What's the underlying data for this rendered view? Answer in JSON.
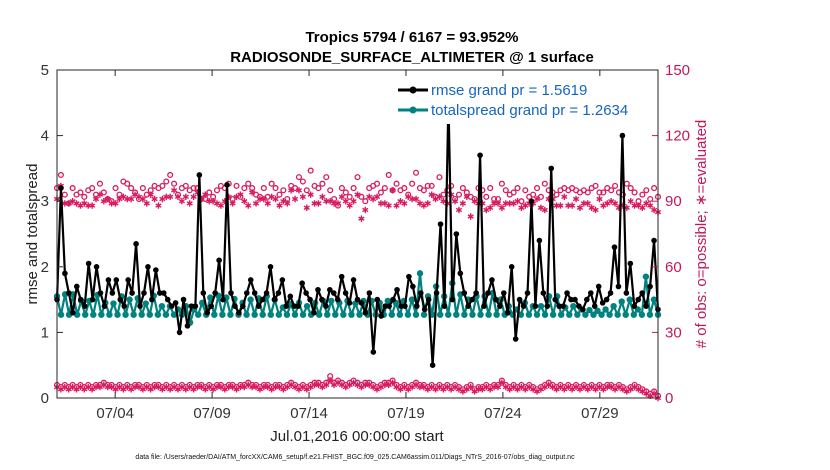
{
  "chart_data": {
    "type": "line",
    "title_line1": "Tropics 5794 / 6167 = 93.952%",
    "title_line2": "RADIOSONDE_SURFACE_ALTIMETER @ 1 surface",
    "ylabel_left": "rmse and totalspread",
    "ylabel_right": "# of obs: o=possible; ∗=evaluated",
    "xlabel": "Jul.01,2016 00:00:00 start",
    "footnote": "data file: /Users/raeder/DAI/ATM_forcXX/CAM6_setup/f.e21.FHIST_BGC.f09_025.CAM6assim.011/Diags_NTrS_2016-07/obs_diag_output.nc",
    "x_ticks": [
      "07/04",
      "07/09",
      "07/14",
      "07/19",
      "07/24",
      "07/29"
    ],
    "y_left": {
      "lim": [
        0,
        5
      ],
      "ticks": [
        "0",
        "1",
        "2",
        "3",
        "4",
        "5"
      ]
    },
    "y_right": {
      "lim": [
        0,
        150
      ],
      "ticks": [
        "0",
        "30",
        "60",
        "90",
        "120",
        "150"
      ]
    },
    "xlim_days": [
      1,
      32
    ],
    "x_tick_days": [
      4,
      9,
      14,
      19,
      24,
      29
    ],
    "legend": [
      {
        "label": "rmse grand pr = 1.5619",
        "color": "#000000"
      },
      {
        "label": "totalspread grand pr = 1.2634",
        "color": "#00837f"
      }
    ],
    "colors": {
      "rmse": "#000000",
      "spread": "#00837f",
      "counts": "#d81b60"
    },
    "series": [
      {
        "name": "rmse",
        "axis": "left",
        "values": [
          1.5,
          3.2,
          1.9,
          1.6,
          1.3,
          1.7,
          1.5,
          1.4,
          2.05,
          1.5,
          2.0,
          1.6,
          1.4,
          1.8,
          1.6,
          1.8,
          1.5,
          1.4,
          1.8,
          1.6,
          2.35,
          1.4,
          1.6,
          2.0,
          1.5,
          1.95,
          1.6,
          1.6,
          1.5,
          1.4,
          1.45,
          1.0,
          1.5,
          1.1,
          1.4,
          1.4,
          3.4,
          1.6,
          1.3,
          1.4,
          1.6,
          2.1,
          1.5,
          3.25,
          1.6,
          1.4,
          1.3,
          1.4,
          1.6,
          1.8,
          1.6,
          1.4,
          1.5,
          1.6,
          2.0,
          1.5,
          1.6,
          1.8,
          1.4,
          1.55,
          1.4,
          1.4,
          1.75,
          1.6,
          1.5,
          1.3,
          1.65,
          1.5,
          1.4,
          1.65,
          1.6,
          1.5,
          1.85,
          1.6,
          1.45,
          1.8,
          1.5,
          1.45,
          1.3,
          1.6,
          0.7,
          1.5,
          1.25,
          1.4,
          1.4,
          1.5,
          1.65,
          1.4,
          1.4,
          1.85,
          1.7,
          1.4,
          1.6,
          1.35,
          1.5,
          0.5,
          1.6,
          2.65,
          1.4,
          4.55,
          1.5,
          2.5,
          1.9,
          1.6,
          1.4,
          1.5,
          1.6,
          3.7,
          1.4,
          1.6,
          1.8,
          1.5,
          1.4,
          1.6,
          1.3,
          2.0,
          0.9,
          1.5,
          1.4,
          1.6,
          3.0,
          1.4,
          2.4,
          1.6,
          1.4,
          3.5,
          1.5,
          1.4,
          1.4,
          1.6,
          1.5,
          1.5,
          1.4,
          1.35,
          1.5,
          1.6,
          1.4,
          1.7,
          1.45,
          1.5,
          1.6,
          2.3,
          1.7,
          4.0,
          1.6,
          2.05,
          1.4,
          1.5,
          1.6,
          1.4,
          1.7,
          2.4,
          1.35
        ]
      },
      {
        "name": "totalspread",
        "axis": "left",
        "values": [
          1.55,
          1.27,
          1.58,
          1.27,
          1.58,
          1.27,
          1.48,
          1.27,
          1.48,
          1.27,
          1.57,
          1.27,
          1.45,
          1.27,
          1.44,
          1.27,
          1.55,
          1.27,
          1.5,
          1.27,
          1.52,
          1.27,
          1.44,
          1.27,
          1.56,
          1.27,
          1.4,
          1.27,
          1.4,
          1.27,
          1.35,
          1.27,
          1.4,
          1.15,
          1.35,
          1.27,
          1.45,
          1.27,
          1.53,
          1.27,
          1.56,
          1.27,
          1.53,
          1.27,
          1.51,
          1.27,
          1.45,
          1.27,
          1.5,
          1.27,
          1.52,
          1.27,
          1.55,
          1.27,
          1.5,
          1.27,
          1.38,
          1.27,
          1.43,
          1.27,
          1.45,
          1.27,
          1.4,
          1.27,
          1.45,
          1.27,
          1.48,
          1.27,
          1.48,
          1.27,
          1.45,
          1.27,
          1.48,
          1.27,
          1.44,
          1.27,
          1.48,
          1.27,
          1.48,
          1.27,
          1.45,
          1.27,
          1.48,
          1.27,
          1.45,
          1.27,
          1.48,
          1.27,
          1.5,
          1.27,
          1.9,
          1.27,
          1.55,
          1.27,
          1.7,
          1.27,
          1.55,
          1.27,
          1.75,
          1.27,
          1.58,
          1.27,
          1.5,
          1.27,
          1.55,
          1.27,
          1.55,
          1.27,
          1.6,
          1.27,
          1.5,
          1.27,
          1.4,
          1.27,
          1.35,
          1.27,
          1.45,
          1.27,
          1.4,
          1.27,
          1.4,
          1.27,
          1.55,
          1.27,
          1.55,
          1.27,
          1.38,
          1.27,
          1.4,
          1.27,
          1.35,
          1.27,
          1.34,
          1.27,
          1.33,
          1.27,
          1.35,
          1.27,
          1.4,
          1.27,
          1.47,
          1.27,
          1.5,
          1.27,
          1.35,
          1.27,
          1.85,
          1.27,
          1.5,
          1.27
        ]
      },
      {
        "name": "obs_possible",
        "axis": "right",
        "values": [
          96,
          102,
          93,
          89,
          96,
          93,
          94,
          92,
          95,
          96,
          93,
          98,
          94,
          91,
          90,
          96,
          93,
          99,
          98,
          96,
          94,
          91,
          96,
          93,
          95,
          97,
          96,
          97,
          99,
          102,
          98,
          93,
          96,
          97,
          95,
          96,
          96,
          91,
          91,
          94,
          92,
          95,
          97,
          96,
          98,
          91,
          97,
          92,
          96,
          98,
          96,
          93,
          92,
          96,
          92,
          98,
          96,
          93,
          95,
          91,
          97,
          96,
          101,
          99,
          95,
          104,
          97,
          96,
          98,
          101,
          95,
          91,
          88,
          96,
          94,
          92,
          96,
          101,
          92,
          90,
          96,
          97,
          98,
          94,
          96,
          102,
          95,
          98,
          95,
          96,
          93,
          98,
          103,
          96,
          95,
          97,
          97,
          92,
          101,
          93,
          95,
          97,
          91,
          93,
          96,
          94,
          92,
          91,
          96,
          95,
          92,
          96,
          91,
          91,
          98,
          95,
          93,
          94,
          96,
          90,
          95,
          92,
          93,
          96,
          92,
          98,
          95,
          94,
          93,
          95,
          96,
          95,
          96,
          95,
          94,
          95,
          94,
          96,
          97,
          94,
          94,
          96,
          95,
          97,
          94,
          93,
          98,
          96,
          94,
          90,
          93,
          95,
          91,
          96,
          92
        ]
      },
      {
        "name": "obs_evaluated",
        "axis": "right",
        "values": [
          91,
          97,
          89,
          89,
          90,
          89,
          88,
          89,
          88,
          88,
          91,
          93,
          90,
          91,
          89,
          89,
          91,
          92,
          91,
          91,
          93,
          92,
          91,
          89,
          93,
          91,
          88,
          91,
          92,
          92,
          95,
          92,
          90,
          92,
          89,
          92,
          94,
          91,
          93,
          90,
          90,
          89,
          88,
          90,
          92,
          89,
          92,
          93,
          90,
          88,
          94,
          89,
          91,
          91,
          89,
          92,
          91,
          88,
          90,
          89,
          95,
          91,
          95,
          92,
          87,
          93,
          89,
          89,
          92,
          90,
          90,
          89,
          89,
          92,
          90,
          88,
          90,
          93,
          82,
          86,
          92,
          91,
          92,
          89,
          89,
          88,
          95,
          88,
          90,
          89,
          92,
          91,
          91,
          89,
          88,
          89,
          93,
          91,
          92,
          90,
          89,
          93,
          90,
          86,
          89,
          92,
          83,
          90,
          89,
          89,
          86,
          87,
          89,
          89,
          87,
          89,
          89,
          89,
          90,
          87,
          88,
          89,
          89,
          91,
          87,
          86,
          91,
          91,
          88,
          88,
          92,
          88,
          88,
          91,
          87,
          89,
          89,
          87,
          86,
          91,
          88,
          89,
          90,
          89,
          87,
          88,
          87,
          90,
          88,
          88,
          87,
          89,
          88,
          86,
          85
        ]
      },
      {
        "name": "obs_possible_low",
        "axis": "right",
        "values": [
          6,
          5,
          6,
          5,
          6,
          5,
          6,
          5,
          6,
          5,
          6,
          6,
          7,
          6,
          6,
          5,
          6,
          5,
          6,
          5,
          6,
          6,
          5,
          6,
          5,
          6,
          6,
          5,
          6,
          5,
          6,
          5,
          6,
          5,
          6,
          5,
          6,
          6,
          5,
          6,
          5,
          6,
          6,
          5,
          6,
          6,
          5,
          6,
          6,
          7,
          6,
          6,
          5,
          6,
          6,
          5,
          6,
          6,
          5,
          6,
          7,
          6,
          5,
          6,
          5,
          6,
          7,
          7,
          6,
          7,
          10,
          7,
          8,
          7,
          6,
          7,
          8,
          7,
          6,
          7,
          7,
          6,
          5,
          6,
          7,
          7,
          8,
          6,
          5,
          6,
          5,
          6,
          7,
          6,
          6,
          5,
          6,
          5,
          6,
          5,
          6,
          5,
          6,
          5,
          4,
          5,
          6,
          4,
          5,
          5,
          6,
          5,
          6,
          6,
          8,
          6,
          5,
          6,
          5,
          6,
          5,
          6,
          5,
          4,
          5,
          6,
          7,
          6,
          5,
          6,
          5,
          6,
          5,
          6,
          5,
          6,
          5,
          6,
          5,
          6,
          5,
          6,
          6,
          5,
          6,
          5,
          4,
          5,
          6,
          5,
          4,
          3,
          2,
          3,
          1
        ]
      },
      {
        "name": "obs_evaluated_low",
        "axis": "right",
        "values": [
          5,
          4,
          5,
          4,
          5,
          4,
          5,
          4,
          5,
          4,
          5,
          5,
          6,
          5,
          5,
          4,
          5,
          4,
          5,
          4,
          5,
          5,
          4,
          5,
          4,
          5,
          5,
          4,
          5,
          4,
          5,
          4,
          5,
          4,
          5,
          4,
          5,
          5,
          4,
          5,
          4,
          5,
          5,
          4,
          5,
          5,
          4,
          5,
          5,
          6,
          5,
          5,
          4,
          5,
          5,
          4,
          5,
          5,
          4,
          5,
          6,
          5,
          4,
          5,
          4,
          5,
          6,
          6,
          5,
          6,
          8,
          6,
          7,
          6,
          5,
          6,
          7,
          6,
          5,
          6,
          6,
          5,
          4,
          5,
          6,
          6,
          7,
          5,
          4,
          5,
          4,
          5,
          6,
          5,
          5,
          4,
          5,
          4,
          5,
          4,
          5,
          4,
          5,
          4,
          3,
          4,
          5,
          3,
          4,
          4,
          5,
          4,
          5,
          5,
          7,
          5,
          4,
          5,
          4,
          5,
          4,
          5,
          4,
          3,
          4,
          5,
          6,
          5,
          4,
          5,
          4,
          5,
          4,
          5,
          4,
          5,
          4,
          5,
          4,
          5,
          4,
          5,
          5,
          4,
          5,
          4,
          3,
          4,
          5,
          4,
          3,
          2,
          1,
          2,
          0
        ]
      }
    ]
  }
}
